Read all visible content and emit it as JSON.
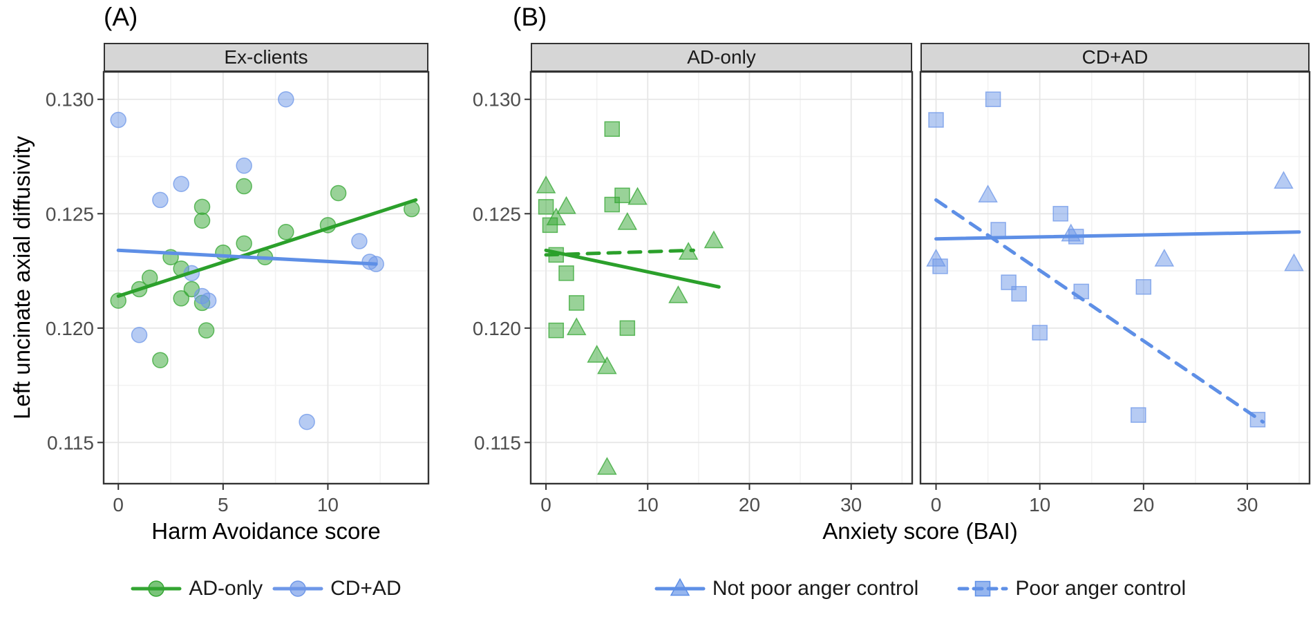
{
  "figure": {
    "label_a": "(A)",
    "label_b": "(B)"
  },
  "legend_left": {
    "items": [
      {
        "label": "AD-only",
        "shape": "circle",
        "color": "#33A532",
        "line": "solid"
      },
      {
        "label": "CD+AD",
        "shape": "circle",
        "color": "#6E97E8",
        "line": "solid"
      }
    ]
  },
  "legend_right": {
    "items": [
      {
        "label": "Not poor anger control",
        "shape": "triangle",
        "color": "#5E8FE6",
        "line": "solid"
      },
      {
        "label": "Poor anger control",
        "shape": "square",
        "color": "#5E8FE6",
        "line": "dashed"
      }
    ]
  },
  "chart_data": {
    "type": "scatter",
    "ylabel": "Left uncinate axial diffusivity",
    "y_domain": [
      0.1132,
      0.1312
    ],
    "y_ticks": [
      0.115,
      0.12,
      0.125,
      0.13
    ],
    "y_minor_ticks": [
      0.1175,
      0.1225,
      0.1275
    ],
    "xlabels": {
      "a": "Harm Avoidance score",
      "b": "Anxiety score (BAI)"
    },
    "panels": [
      {
        "facet": "Ex-clients",
        "x_domain": [
          -0.7,
          14.8
        ],
        "x_ticks": [
          0,
          5,
          10
        ],
        "x_minor_ticks": [
          2.5,
          7.5,
          12.5
        ],
        "series": [
          {
            "name": "AD-only",
            "shape": "circle",
            "color": "#33A532",
            "points": [
              [
                0,
                0.1212
              ],
              [
                1,
                0.1217
              ],
              [
                1.5,
                0.1222
              ],
              [
                2,
                0.1186
              ],
              [
                2.5,
                0.1231
              ],
              [
                3,
                0.1226
              ],
              [
                3,
                0.1213
              ],
              [
                3.5,
                0.1217
              ],
              [
                4,
                0.1253
              ],
              [
                4,
                0.1247
              ],
              [
                4,
                0.1211
              ],
              [
                4.2,
                0.1199
              ],
              [
                5,
                0.1233
              ],
              [
                6,
                0.1262
              ],
              [
                6,
                0.1237
              ],
              [
                7,
                0.1231
              ],
              [
                8,
                0.1242
              ],
              [
                10,
                0.1245
              ],
              [
                10.5,
                0.1259
              ],
              [
                14,
                0.1252
              ]
            ]
          },
          {
            "name": "CD+AD",
            "shape": "circle",
            "color": "#6E97E8",
            "points": [
              [
                0,
                0.1291
              ],
              [
                1,
                0.1197
              ],
              [
                2,
                0.1256
              ],
              [
                3,
                0.1263
              ],
              [
                3.5,
                0.1224
              ],
              [
                4,
                0.1214
              ],
              [
                4.3,
                0.1212
              ],
              [
                6,
                0.1271
              ],
              [
                8,
                0.13
              ],
              [
                9,
                0.1159
              ],
              [
                11.5,
                0.1238
              ],
              [
                12,
                0.1229
              ],
              [
                12.3,
                0.1228
              ]
            ]
          }
        ],
        "fit_lines": [
          {
            "series": "AD-only",
            "style": "solid",
            "color": "#2BA02B",
            "x1": 0,
            "y1": 0.1214,
            "x2": 14.2,
            "y2": 0.1256
          },
          {
            "series": "CD+AD",
            "style": "solid",
            "color": "#5E8FE6",
            "x1": 0,
            "y1": 0.1234,
            "x2": 12.3,
            "y2": 0.1228
          }
        ]
      },
      {
        "facet": "AD-only",
        "x_domain": [
          -1.5,
          36
        ],
        "x_ticks": [
          0,
          10,
          20,
          30
        ],
        "x_minor_ticks": [
          5,
          15,
          25,
          35
        ],
        "series": [
          {
            "name": "Not poor anger control",
            "shape": "triangle",
            "color": "#33A532",
            "points": [
              [
                0,
                0.1262
              ],
              [
                1,
                0.1248
              ],
              [
                2,
                0.1253
              ],
              [
                3,
                0.12
              ],
              [
                5,
                0.1188
              ],
              [
                6,
                0.1139
              ],
              [
                6,
                0.1183
              ],
              [
                8,
                0.1246
              ],
              [
                9,
                0.1257
              ],
              [
                13,
                0.1214
              ],
              [
                14,
                0.1233
              ],
              [
                16.5,
                0.1238
              ]
            ]
          },
          {
            "name": "Poor anger control",
            "shape": "square",
            "color": "#33A532",
            "points": [
              [
                0,
                0.1253
              ],
              [
                0.4,
                0.1245
              ],
              [
                1,
                0.1232
              ],
              [
                1,
                0.1199
              ],
              [
                2,
                0.1224
              ],
              [
                3,
                0.1211
              ],
              [
                6.5,
                0.1287
              ],
              [
                6.5,
                0.1254
              ],
              [
                7.5,
                0.1258
              ],
              [
                8,
                0.12
              ]
            ]
          }
        ],
        "fit_lines": [
          {
            "series": "Not poor anger control",
            "style": "solid",
            "color": "#2BA02B",
            "x1": 0,
            "y1": 0.1234,
            "x2": 17,
            "y2": 0.1218
          },
          {
            "series": "Poor anger control",
            "style": "dashed",
            "color": "#2BA02B",
            "x1": 0,
            "y1": 0.1232,
            "x2": 14.5,
            "y2": 0.1234
          }
        ]
      },
      {
        "facet": "CD+AD",
        "x_domain": [
          -1.5,
          36
        ],
        "x_ticks": [
          0,
          10,
          20,
          30
        ],
        "x_minor_ticks": [
          5,
          15,
          25,
          35
        ],
        "series": [
          {
            "name": "Not poor anger control",
            "shape": "triangle",
            "color": "#6E97E8",
            "points": [
              [
                0,
                0.123
              ],
              [
                5,
                0.1258
              ],
              [
                13,
                0.1241
              ],
              [
                22,
                0.123
              ],
              [
                33.5,
                0.1264
              ],
              [
                34.5,
                0.1228
              ]
            ]
          },
          {
            "name": "Poor anger control",
            "shape": "square",
            "color": "#6E97E8",
            "points": [
              [
                0,
                0.1291
              ],
              [
                0.4,
                0.1227
              ],
              [
                5.5,
                0.13
              ],
              [
                6,
                0.1243
              ],
              [
                7,
                0.122
              ],
              [
                8,
                0.1215
              ],
              [
                10,
                0.1198
              ],
              [
                12,
                0.125
              ],
              [
                13.5,
                0.124
              ],
              [
                14,
                0.1216
              ],
              [
                19.5,
                0.1162
              ],
              [
                20,
                0.1218
              ],
              [
                31,
                0.116
              ]
            ]
          }
        ],
        "fit_lines": [
          {
            "series": "Not poor anger control",
            "style": "solid",
            "color": "#5E8FE6",
            "x1": 0,
            "y1": 0.1239,
            "x2": 35,
            "y2": 0.1242
          },
          {
            "series": "Poor anger control",
            "style": "dashed",
            "color": "#5E8FE6",
            "x1": 0,
            "y1": 0.1256,
            "x2": 31.5,
            "y2": 0.1159
          }
        ]
      }
    ]
  }
}
